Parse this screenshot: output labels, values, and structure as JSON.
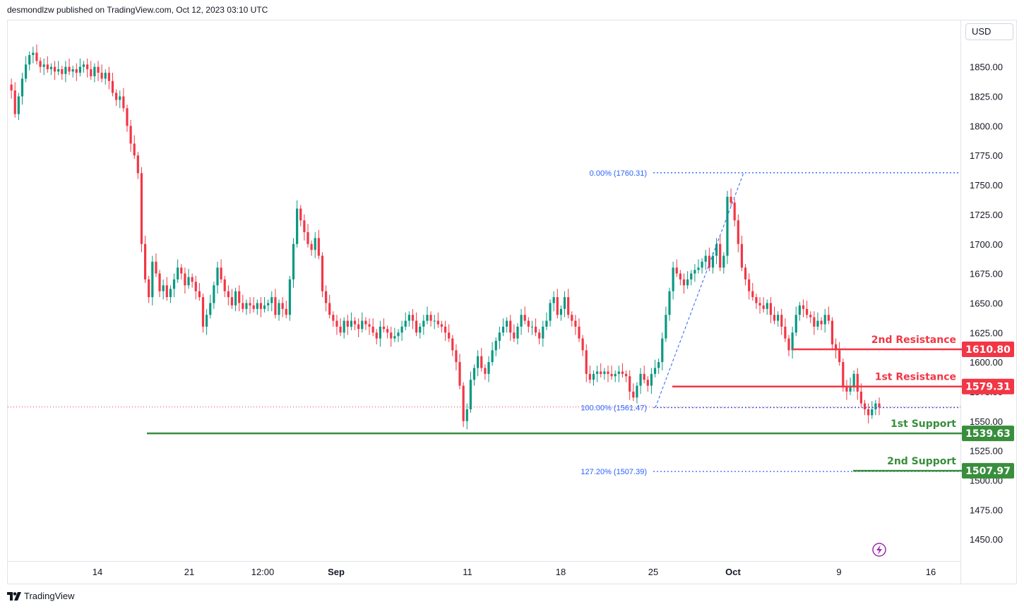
{
  "header": {
    "publisher": "desmondlzw published on TradingView.com, Oct 12, 2023 03:10 UTC"
  },
  "toolbar": {
    "currency": "USD"
  },
  "footer": {
    "brand": "TradingView"
  },
  "icons": {
    "footer_logo": "tradingview-logo-icon",
    "flash": "lightning-bolt-icon"
  },
  "colors": {
    "up": "#089981",
    "down": "#f23645",
    "fib": "#2962ff",
    "support": "#388e3c",
    "resistance": "#f23645",
    "current_price_line": "#f23645"
  },
  "chart_data": {
    "type": "candlestick",
    "ylim": [
      1430,
      1875
    ],
    "y_ticks": [
      1450,
      1475,
      1500,
      1525,
      1550,
      1575,
      1600,
      1625,
      1650,
      1675,
      1700,
      1725,
      1750,
      1775,
      1800,
      1825,
      1850
    ],
    "x_ticks": [
      "14",
      "21",
      "12:00",
      "Sep",
      "11",
      "18",
      "25",
      "Oct",
      "9",
      "16"
    ],
    "bold_x_ticks": [
      "Sep",
      "Oct"
    ],
    "fib_levels": [
      {
        "label": "0.00% (1760.31)",
        "price": 1760.31
      },
      {
        "label": "100.00% (1561.47)",
        "price": 1561.47
      },
      {
        "label": "127.20% (1507.39)",
        "price": 1507.39
      }
    ],
    "levels": [
      {
        "name": "2nd Resistance",
        "value": "1610.80",
        "price": 1610.8,
        "kind": "resistance"
      },
      {
        "name": "1st Resistance",
        "value": "1579.31",
        "price": 1579.31,
        "kind": "resistance"
      },
      {
        "name": "1st Support",
        "value": "1539.63",
        "price": 1539.63,
        "kind": "support"
      },
      {
        "name": "2nd Support",
        "value": "1507.97",
        "price": 1507.97,
        "kind": "support"
      }
    ],
    "current_price": 1562,
    "price_path": [
      1835,
      1830,
      1810,
      1825,
      1840,
      1852,
      1860,
      1862,
      1855,
      1850,
      1852,
      1848,
      1850,
      1846,
      1848,
      1844,
      1850,
      1846,
      1848,
      1845,
      1850,
      1852,
      1848,
      1842,
      1850,
      1845,
      1840,
      1845,
      1838,
      1828,
      1822,
      1825,
      1815,
      1800,
      1785,
      1775,
      1760,
      1700,
      1670,
      1655,
      1685,
      1675,
      1660,
      1665,
      1655,
      1662,
      1670,
      1680,
      1675,
      1665,
      1672,
      1668,
      1660,
      1655,
      1630,
      1640,
      1650,
      1665,
      1680,
      1670,
      1660,
      1655,
      1648,
      1660,
      1650,
      1645,
      1650,
      1648,
      1645,
      1650,
      1645,
      1648,
      1650,
      1655,
      1640,
      1650,
      1645,
      1640,
      1670,
      1700,
      1730,
      1720,
      1710,
      1700,
      1695,
      1705,
      1690,
      1660,
      1650,
      1640,
      1635,
      1630,
      1625,
      1635,
      1630,
      1635,
      1632,
      1628,
      1635,
      1632,
      1630,
      1625,
      1620,
      1630,
      1628,
      1625,
      1620,
      1622,
      1625,
      1630,
      1635,
      1640,
      1635,
      1625,
      1630,
      1635,
      1640,
      1635,
      1635,
      1632,
      1630,
      1625,
      1620,
      1610,
      1600,
      1580,
      1550,
      1560,
      1585,
      1595,
      1605,
      1595,
      1590,
      1600,
      1610,
      1618,
      1625,
      1630,
      1635,
      1625,
      1620,
      1630,
      1640,
      1635,
      1630,
      1630,
      1625,
      1620,
      1630,
      1635,
      1650,
      1655,
      1640,
      1645,
      1655,
      1640,
      1635,
      1630,
      1620,
      1610,
      1590,
      1585,
      1590,
      1592,
      1590,
      1592,
      1590,
      1588,
      1590,
      1592,
      1590,
      1588,
      1575,
      1570,
      1580,
      1590,
      1585,
      1580,
      1590,
      1595,
      1600,
      1620,
      1640,
      1660,
      1680,
      1675,
      1670,
      1665,
      1670,
      1675,
      1678,
      1680,
      1685,
      1690,
      1680,
      1690,
      1700,
      1680,
      1690,
      1740,
      1735,
      1720,
      1700,
      1680,
      1670,
      1660,
      1655,
      1650,
      1648,
      1645,
      1650,
      1640,
      1635,
      1640,
      1630,
      1620,
      1610,
      1625,
      1640,
      1648,
      1645,
      1640,
      1638,
      1630,
      1635,
      1632,
      1640,
      1635,
      1615,
      1610,
      1600,
      1580,
      1575,
      1580,
      1590,
      1575,
      1565,
      1560,
      1555,
      1560,
      1565,
      1562
    ]
  }
}
